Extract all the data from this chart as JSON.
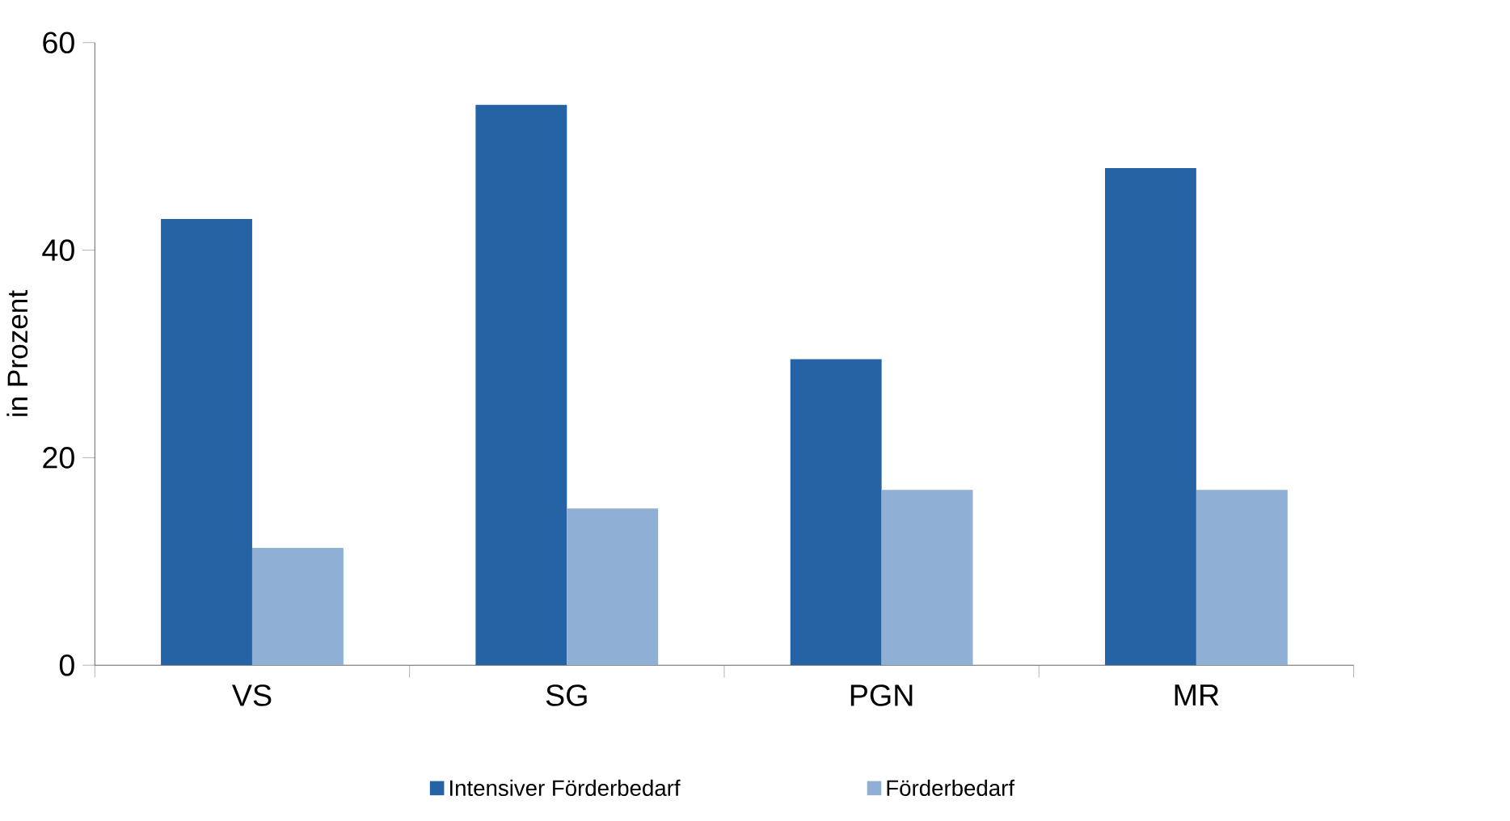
{
  "chart_data": {
    "type": "bar",
    "ylabel": "in Prozent",
    "categories": [
      "VS",
      "SG",
      "PGN",
      "MR"
    ],
    "series": [
      {
        "name": "Intensiver Förderbedarf",
        "color": "#2563a5",
        "values": [
          43,
          54,
          29.5,
          47.9
        ]
      },
      {
        "name": "Förderbedarf",
        "color": "#8fb0d4",
        "values": [
          11.3,
          15.1,
          16.9,
          16.9
        ]
      }
    ],
    "ylim": [
      0,
      60
    ],
    "yticks": [
      0,
      20,
      40,
      60
    ],
    "legend": "bottom"
  }
}
